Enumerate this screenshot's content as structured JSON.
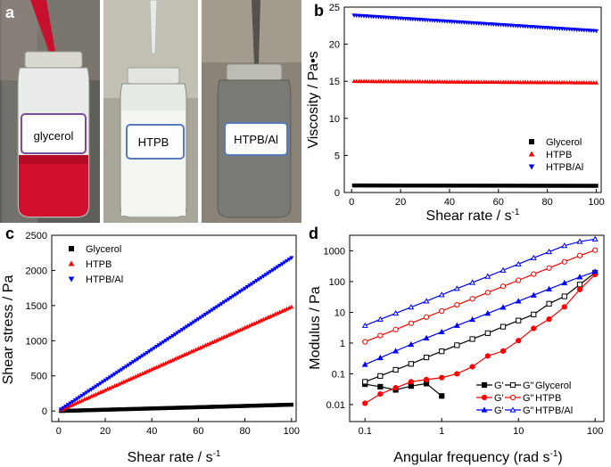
{
  "photos": {
    "panel_letter": "a",
    "labels": [
      "glycerol",
      "HTPB",
      "HTPB/Al"
    ],
    "colors": {
      "glycerol": "#d0102e",
      "htpb": "#e8ece8",
      "htpb_al": "#7a7a74"
    }
  },
  "chart_data": [
    {
      "id": "b",
      "type": "scatter",
      "panel_letter": "b",
      "xlabel": "Shear rate / s",
      "xlabel_sup": "-1",
      "ylabel": "Viscosity / Pa•s",
      "xlim": [
        -3,
        102
      ],
      "ylim": [
        0,
        25
      ],
      "xticks": [
        0,
        20,
        40,
        60,
        80,
        100
      ],
      "yticks": [
        0,
        5,
        10,
        15,
        20,
        25
      ],
      "legend_position": "bottom-right",
      "series": [
        {
          "name": "Glycerol",
          "marker": "square",
          "color": "#000000",
          "start": 1,
          "end": 100,
          "y_start": 0.95,
          "y_end": 0.9
        },
        {
          "name": "HTPB",
          "marker": "triangle-up",
          "color": "#ff0000",
          "start": 1,
          "end": 100,
          "y_start": 15.0,
          "y_end": 14.8
        },
        {
          "name": "HTPB/Al",
          "marker": "triangle-down",
          "color": "#0000ff",
          "start": 1,
          "end": 100,
          "y_start": 23.9,
          "y_end": 21.8
        }
      ]
    },
    {
      "id": "c",
      "type": "scatter",
      "panel_letter": "c",
      "xlabel": "Shear rate / s",
      "xlabel_sup": "-1",
      "ylabel": "Shear stress / Pa",
      "xlim": [
        -3,
        102
      ],
      "ylim": [
        -150,
        2500
      ],
      "xticks": [
        0,
        20,
        40,
        60,
        80,
        100
      ],
      "yticks": [
        0,
        500,
        1000,
        1500,
        2000,
        2500
      ],
      "legend_position": "top-left",
      "series": [
        {
          "name": "Glycerol",
          "marker": "square",
          "color": "#000000",
          "start": 1,
          "end": 100,
          "y_start": 1,
          "y_end": 90
        },
        {
          "name": "HTPB",
          "marker": "triangle-up",
          "color": "#ff0000",
          "start": 1,
          "end": 100,
          "y_start": 15,
          "y_end": 1480
        },
        {
          "name": "HTPB/Al",
          "marker": "triangle-down",
          "color": "#0000ff",
          "start": 1,
          "end": 100,
          "y_start": 24,
          "y_end": 2180
        }
      ]
    },
    {
      "id": "d",
      "type": "line",
      "panel_letter": "d",
      "xlabel": "Angular frequency (rad s",
      "xlabel_sup": "-1",
      "xlabel_end": ")",
      "ylabel": "Modulus / Pa",
      "xscale": "log",
      "yscale": "log",
      "xlim": [
        0.063,
        130
      ],
      "ylim": [
        0.0028,
        3200
      ],
      "xticks": [
        0.1,
        1,
        10,
        100
      ],
      "xtick_labels": [
        "0.1",
        "1",
        "10",
        "100"
      ],
      "yticks": [
        0.01,
        0.1,
        1,
        10,
        100,
        1000
      ],
      "ytick_labels": [
        "0.01",
        "0.1",
        "1",
        "10",
        "100",
        "1000"
      ],
      "legend_position": "bottom-right",
      "legend_rows": [
        {
          "g1": "G'",
          "g2": "G\"",
          "name": "Glycerol",
          "color": "#000000",
          "marker1": "square",
          "marker2": "square-open"
        },
        {
          "g1": "G'",
          "g2": "G\"",
          "name": "HTPB",
          "color": "#ff0000",
          "marker1": "circle",
          "marker2": "circle-open"
        },
        {
          "g1": "G'",
          "g2": "G\"",
          "name": "HTPB/Al",
          "color": "#0000ff",
          "marker1": "triangle",
          "marker2": "triangle-open"
        }
      ],
      "series": [
        {
          "name": "Glycerol G'",
          "color": "#000000",
          "marker": "square",
          "filled": true,
          "x": [
            0.1,
            0.158,
            0.251,
            0.398,
            0.631,
            1.0
          ],
          "y": [
            0.046,
            0.038,
            0.03,
            0.04,
            0.048,
            0.019
          ]
        },
        {
          "name": "Glycerol G\"",
          "color": "#000000",
          "marker": "square",
          "filled": false,
          "x": [
            0.1,
            0.158,
            0.251,
            0.398,
            0.631,
            1,
            1.58,
            2.51,
            3.98,
            6.31,
            10,
            15.8,
            25.1,
            39.8,
            63.1,
            100
          ],
          "y": [
            0.055,
            0.085,
            0.135,
            0.21,
            0.34,
            0.54,
            0.85,
            1.35,
            2.1,
            3.4,
            5.4,
            8.5,
            19,
            33,
            80,
            195
          ]
        },
        {
          "name": "HTPB G'",
          "color": "#ff0000",
          "marker": "circle",
          "filled": true,
          "x": [
            0.1,
            0.158,
            0.251,
            0.398,
            0.631,
            1,
            1.58,
            2.51,
            3.98,
            6.31,
            10,
            15.8,
            25.1,
            39.8,
            63.1,
            100
          ],
          "y": [
            0.011,
            0.022,
            0.035,
            0.055,
            0.065,
            0.075,
            0.1,
            0.17,
            0.38,
            0.55,
            1.2,
            3,
            6,
            15,
            55,
            170
          ]
        },
        {
          "name": "HTPB G\"",
          "color": "#ff0000",
          "marker": "circle",
          "filled": false,
          "x": [
            0.1,
            0.158,
            0.251,
            0.398,
            0.631,
            1,
            1.58,
            2.51,
            3.98,
            6.31,
            10,
            15.8,
            25.1,
            39.8,
            63.1,
            100
          ],
          "y": [
            1.1,
            1.75,
            2.75,
            4.4,
            7,
            11,
            17.5,
            27.5,
            44,
            70,
            110,
            175,
            275,
            440,
            700,
            1050
          ]
        },
        {
          "name": "HTPB/Al G'",
          "color": "#0000ff",
          "marker": "triangle",
          "filled": true,
          "x": [
            0.1,
            0.158,
            0.251,
            0.398,
            0.631,
            1,
            1.58,
            2.51,
            3.98,
            6.31,
            10,
            15.8,
            25.1,
            39.8,
            63.1,
            100
          ],
          "y": [
            0.2,
            0.33,
            0.55,
            0.9,
            1.45,
            2.3,
            3.7,
            5.8,
            9.2,
            14.5,
            23,
            36,
            57,
            90,
            140,
            210
          ]
        },
        {
          "name": "HTPB/Al G\"",
          "color": "#0000ff",
          "marker": "triangle",
          "filled": false,
          "x": [
            0.1,
            0.158,
            0.251,
            0.398,
            0.631,
            1,
            1.58,
            2.51,
            3.98,
            6.31,
            10,
            15.8,
            25.1,
            39.8,
            63.1,
            100
          ],
          "y": [
            3.7,
            5.9,
            9.3,
            14.7,
            23,
            37,
            59,
            93,
            147,
            233,
            370,
            590,
            930,
            1470,
            2000,
            2400
          ]
        }
      ]
    }
  ]
}
